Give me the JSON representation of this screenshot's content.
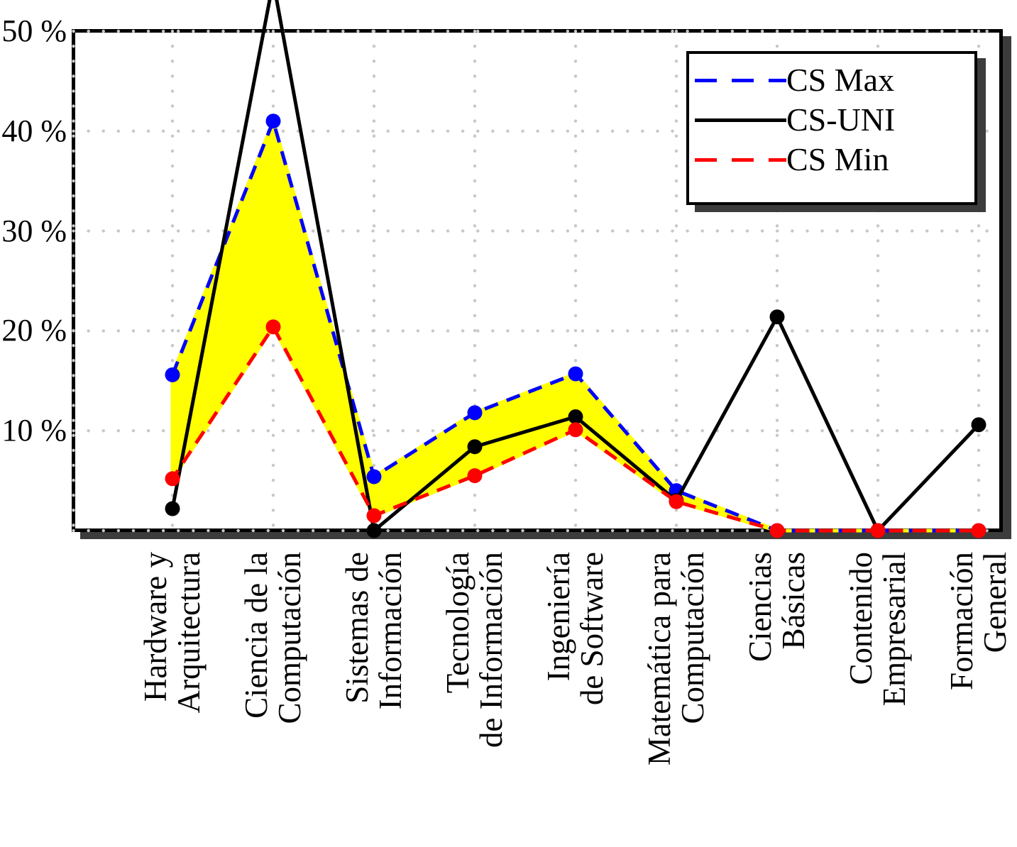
{
  "chart_data": {
    "type": "line",
    "categories": [
      "Hardware y Arquitectura",
      "Ciencia de la Computación",
      "Sistemas de Información",
      "Tecnología de Información",
      "Ingeniería de Software",
      "Matemática para Computación",
      "Ciencias Básicas",
      "Contenido Empresarial",
      "Formación General"
    ],
    "category_display_lines": [
      [
        "Hardware y",
        "Arquitectura"
      ],
      [
        "Ciencia de la",
        "Computación"
      ],
      [
        "Sistemas de",
        "Información"
      ],
      [
        "Tecnología",
        "de Información"
      ],
      [
        "Ingeniería",
        "de Software"
      ],
      [
        "Matemática para",
        "Computación"
      ],
      [
        "Ciencias",
        "Básicas"
      ],
      [
        "Contenido",
        "Empresarial"
      ],
      [
        "Formación",
        "General"
      ]
    ],
    "series": [
      {
        "name": "CS Max",
        "color": "#0000ff",
        "line_style": "dashed",
        "marker": "circle",
        "values": [
          15.6,
          41.0,
          5.4,
          11.8,
          15.7,
          4.0,
          0.0,
          0.0,
          0.0
        ]
      },
      {
        "name": "CS-UNI",
        "color": "#000000",
        "line_style": "solid",
        "marker": "circle",
        "values": [
          2.2,
          55.0,
          0.0,
          8.4,
          11.4,
          3.0,
          21.4,
          0.0,
          10.6
        ]
      },
      {
        "name": "CS Min",
        "color": "#ff0000",
        "line_style": "dashed",
        "marker": "circle",
        "values": [
          5.2,
          20.4,
          1.5,
          5.5,
          10.1,
          2.9,
          0.0,
          0.0,
          0.0
        ]
      }
    ],
    "band_between": {
      "upper": "CS Max",
      "lower": "CS Min",
      "color": "#ffff00"
    },
    "yaxis": {
      "min": 0,
      "max": 50,
      "tick_step": 10,
      "tick_values": [
        10,
        20,
        30,
        40,
        50
      ],
      "tick_labels": [
        "10 %",
        "20 %",
        "30 %",
        "40 %",
        "50 %"
      ]
    },
    "grid": "dotted",
    "grid_color": "#c8c8c8",
    "legend_position": "top-right"
  },
  "legend": {
    "entries": [
      {
        "label": "CS Max"
      },
      {
        "label": "CS-UNI"
      },
      {
        "label": "CS Min"
      }
    ]
  },
  "colors": {
    "frame": "#000000",
    "shadow": "#3c3c3c",
    "background": "#ffffff"
  }
}
